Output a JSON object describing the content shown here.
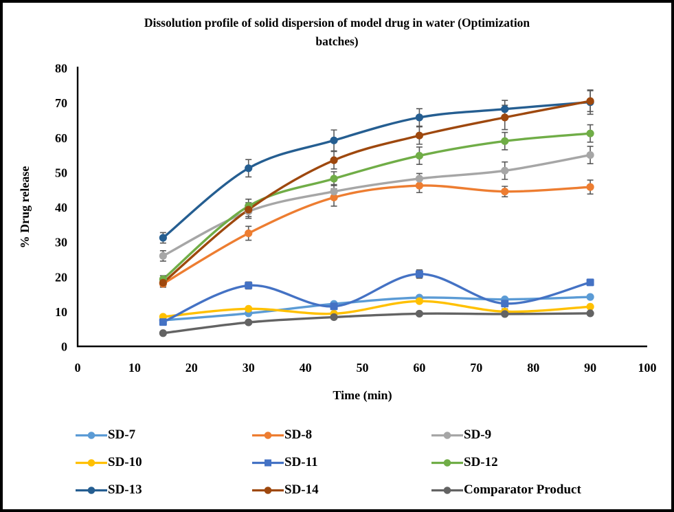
{
  "title": {
    "line1": "Dissolution profile of solid dispersion of model drug in water (Optimization",
    "line2": "batches)"
  },
  "chart_data": {
    "type": "line",
    "title": "Dissolution profile of solid dispersion of model drug in water (Optimization batches)",
    "xlabel": "Time (min)",
    "ylabel": "% Drug release",
    "xlim": [
      0,
      100
    ],
    "ylim": [
      0,
      80
    ],
    "x_ticks": [
      0,
      10,
      20,
      30,
      40,
      50,
      60,
      70,
      80,
      90,
      100
    ],
    "y_ticks": [
      0,
      10,
      20,
      30,
      40,
      50,
      60,
      70,
      80
    ],
    "grid": false,
    "legend_position": "bottom",
    "smoothed_lines": true,
    "axis_color": "#000000",
    "error_bar_color": "#595959",
    "x": [
      15,
      30,
      45,
      60,
      75,
      90
    ],
    "series": [
      {
        "name": "SD-7",
        "color": "#5B9BD5",
        "marker": "circle",
        "values": [
          7.5,
          9.5,
          12.2,
          14.0,
          13.5,
          14.2
        ],
        "err": [
          0,
          0,
          0,
          0,
          0,
          0
        ]
      },
      {
        "name": "SD-8",
        "color": "#ED7D31",
        "marker": "circle",
        "values": [
          18.0,
          32.5,
          42.8,
          46.2,
          44.5,
          45.8
        ],
        "err": [
          1.0,
          2.0,
          2.5,
          2.0,
          1.5,
          2.0
        ]
      },
      {
        "name": "SD-9",
        "color": "#A6A6A6",
        "marker": "circle",
        "values": [
          26.0,
          38.8,
          44.5,
          48.2,
          50.5,
          55.0
        ],
        "err": [
          1.5,
          2.0,
          2.0,
          1.5,
          2.5,
          2.5
        ]
      },
      {
        "name": "SD-10",
        "color": "#FFC000",
        "marker": "circle",
        "values": [
          8.5,
          10.8,
          9.4,
          13.0,
          10.0,
          11.4
        ],
        "err": [
          0,
          0,
          0,
          0,
          0,
          0
        ]
      },
      {
        "name": "SD-11",
        "color": "#4472C4",
        "marker": "square",
        "values": [
          7.0,
          17.5,
          11.5,
          20.8,
          12.3,
          18.4
        ],
        "err": [
          0,
          1.0,
          0,
          1.2,
          1.5,
          0
        ]
      },
      {
        "name": "SD-12",
        "color": "#70AD47",
        "marker": "circle",
        "values": [
          19.3,
          40.3,
          48.2,
          54.8,
          59.0,
          61.2
        ],
        "err": [
          1.0,
          2.0,
          2.0,
          2.5,
          2.5,
          2.5
        ]
      },
      {
        "name": "SD-13",
        "color": "#255E91",
        "marker": "circle",
        "values": [
          31.2,
          51.2,
          59.2,
          65.8,
          68.2,
          70.2
        ],
        "err": [
          1.5,
          2.5,
          3.0,
          2.5,
          2.5,
          3.5
        ]
      },
      {
        "name": "SD-14",
        "color": "#9E480E",
        "marker": "circle",
        "values": [
          18.3,
          39.3,
          53.5,
          60.6,
          65.8,
          70.5
        ],
        "err": [
          1.0,
          2.0,
          2.5,
          2.5,
          3.5,
          3.0
        ]
      },
      {
        "name": "Comparator Product",
        "color": "#636363",
        "marker": "circle",
        "values": [
          3.8,
          6.9,
          8.4,
          9.4,
          9.3,
          9.5
        ],
        "err": [
          0,
          0,
          0,
          0,
          0,
          0
        ]
      }
    ]
  }
}
